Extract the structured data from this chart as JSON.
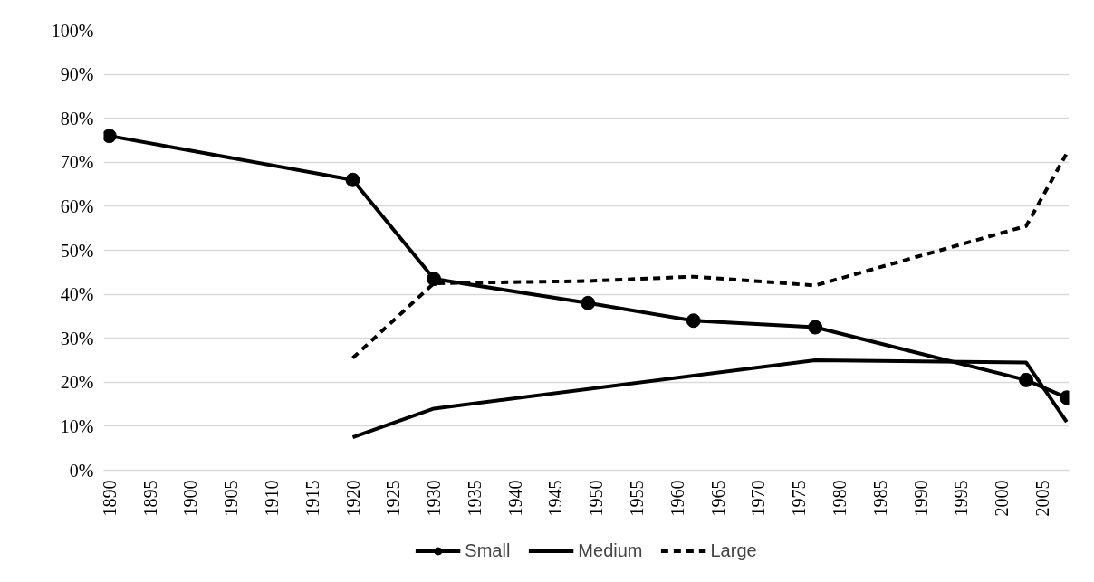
{
  "chart_data": {
    "type": "line",
    "x": [
      1890,
      1920,
      1930,
      1949,
      1962,
      1977,
      2003,
      2008
    ],
    "series": [
      {
        "name": "Small",
        "color": "#000000",
        "marker": "circle",
        "line_style": "solid",
        "values": [
          76,
          66,
          43.5,
          38,
          34,
          32.5,
          20.5,
          16.5
        ]
      },
      {
        "name": "Medium",
        "color": "#000000",
        "marker": "none",
        "line_style": "solid",
        "values": [
          null,
          7.5,
          14,
          null,
          null,
          25,
          24.5,
          11
        ]
      },
      {
        "name": "Large",
        "color": "#000000",
        "marker": "none",
        "line_style": "dashed",
        "values": [
          null,
          25.5,
          42.5,
          43,
          44,
          42,
          55.5,
          72
        ]
      }
    ],
    "xlim": [
      1889.3,
      2008.3
    ],
    "xticks": [
      1890,
      1895,
      1900,
      1905,
      1910,
      1915,
      1920,
      1925,
      1930,
      1935,
      1940,
      1945,
      1950,
      1955,
      1960,
      1965,
      1970,
      1975,
      1980,
      1985,
      1990,
      1995,
      2000,
      2005
    ],
    "ylim": [
      0,
      100
    ],
    "yticks": [
      {
        "value": 0,
        "label": "0%"
      },
      {
        "value": 10,
        "label": "10%"
      },
      {
        "value": 20,
        "label": "20%"
      },
      {
        "value": 30,
        "label": "30%"
      },
      {
        "value": 40,
        "label": "40%"
      },
      {
        "value": 50,
        "label": "50%"
      },
      {
        "value": 60,
        "label": "60%"
      },
      {
        "value": 70,
        "label": "70%"
      },
      {
        "value": 80,
        "label": "80%"
      },
      {
        "value": 90,
        "label": "90%"
      },
      {
        "value": 100,
        "label": "100%"
      }
    ],
    "grid": "y",
    "legend": "bottom"
  }
}
